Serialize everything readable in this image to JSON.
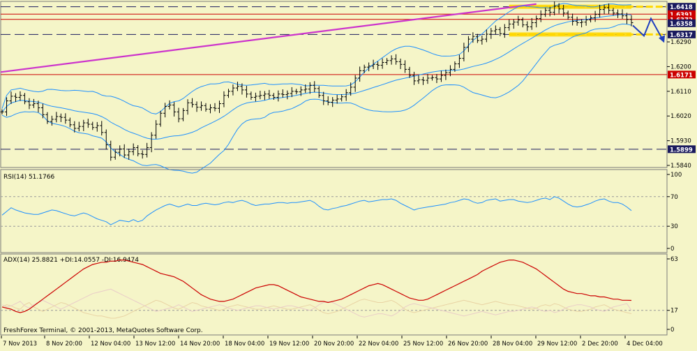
{
  "footer": {
    "copyright": "FreshForex Terminal, © 2001-2013, MetaQuotes Software Corp."
  },
  "colors": {
    "background": "#f5f5c8",
    "frame": "#7a7a7a",
    "candles": "#000000",
    "bollinger": "#1e90ff",
    "resistance_level": "#cc0000",
    "trendline": "#cc33cc",
    "target_band": "#ffd700",
    "arrow": "#1f3fbf",
    "rsi": "#1e90ff",
    "adx": "#cc0000"
  },
  "chart_data": [
    {
      "type": "candlestick",
      "title": "",
      "ylim": [
        1.5835,
        1.6435
      ],
      "y_ticks": [
        "1.6290",
        "1.6200",
        "1.6110",
        "1.6020",
        "1.5930",
        "1.5840"
      ],
      "y_tick_values": [
        1.629,
        1.62,
        1.611,
        1.602,
        1.593,
        1.584
      ],
      "price_labels": [
        {
          "text": "1.6418",
          "value": 1.6418,
          "style": "dark"
        },
        {
          "text": "1.6391",
          "value": 1.6391,
          "style": "red"
        },
        {
          "text": "1.6372",
          "value": 1.6372,
          "style": "red"
        },
        {
          "text": "1.6358",
          "value": 1.6358,
          "style": "dark"
        },
        {
          "text": "1.6317",
          "value": 1.6317,
          "style": "dark"
        },
        {
          "text": "1.6171",
          "value": 1.6171,
          "style": "red"
        },
        {
          "text": "1.5899",
          "value": 1.5899,
          "style": "dark"
        }
      ],
      "dashed_levels": [
        1.6418,
        1.6317,
        1.5899
      ],
      "solid_levels": [
        1.6391,
        1.6372,
        1.6171
      ],
      "trendline": {
        "from": 1.618,
        "to": 1.6428
      },
      "yellow_bands": [
        1.6418,
        1.6317
      ],
      "x_labels": [
        "7 Nov 2013",
        "8 Nov 20:00",
        "12 Nov 04:00",
        "13 Nov 12:00",
        "14 Nov 20:00",
        "18 Nov 04:00",
        "19 Nov 12:00",
        "20 Nov 20:00",
        "22 Nov 04:00",
        "25 Nov 12:00",
        "26 Nov 20:00",
        "28 Nov 04:00",
        "29 Nov 12:00",
        "2 Dec 20:00",
        "4 Dec 04:00"
      ],
      "close": [
        1.6035,
        1.6075,
        1.6092,
        1.6088,
        1.6095,
        1.6072,
        1.606,
        1.6065,
        1.605,
        1.6025,
        1.6,
        1.6008,
        1.6018,
        1.6015,
        1.6005,
        1.5988,
        1.5975,
        1.5982,
        1.5995,
        1.599,
        1.5978,
        1.5985,
        1.596,
        1.5915,
        1.587,
        1.5888,
        1.59,
        1.5878,
        1.589,
        1.5905,
        1.5882,
        1.588,
        1.5905,
        1.595,
        1.599,
        1.603,
        1.6055,
        1.606,
        1.6035,
        1.601,
        1.604,
        1.6068,
        1.6062,
        1.6052,
        1.6058,
        1.6045,
        1.605,
        1.6048,
        1.6065,
        1.6095,
        1.611,
        1.6122,
        1.6128,
        1.6115,
        1.61,
        1.6088,
        1.6092,
        1.6095,
        1.61,
        1.6095,
        1.6088,
        1.61,
        1.6098,
        1.6102,
        1.611,
        1.6108,
        1.6115,
        1.6118,
        1.6132,
        1.612,
        1.6095,
        1.6075,
        1.607,
        1.6078,
        1.6082,
        1.609,
        1.6105,
        1.6125,
        1.6158,
        1.6185,
        1.6198,
        1.6202,
        1.6208,
        1.6205,
        1.6215,
        1.6222,
        1.6228,
        1.6218,
        1.6208,
        1.619,
        1.6168,
        1.6148,
        1.6152,
        1.615,
        1.6158,
        1.616,
        1.6155,
        1.6168,
        1.6178,
        1.619,
        1.621,
        1.623,
        1.627,
        1.63,
        1.631,
        1.6295,
        1.63,
        1.6318,
        1.633,
        1.6335,
        1.632,
        1.6342,
        1.6355,
        1.6362,
        1.637,
        1.6352,
        1.6345,
        1.636,
        1.6375,
        1.639,
        1.6405,
        1.6398,
        1.642,
        1.641,
        1.6395,
        1.638,
        1.6365,
        1.636,
        1.6362,
        1.637,
        1.6378,
        1.639,
        1.6408,
        1.6415,
        1.6405,
        1.6395,
        1.6392,
        1.6385,
        1.6372,
        1.636
      ]
    },
    {
      "type": "line",
      "title": "RSI(14) 51.1766",
      "ylim": [
        0,
        100
      ],
      "y_ticks": [
        100,
        70,
        30,
        0
      ],
      "levels": [
        70,
        30
      ],
      "series": [
        {
          "values": [
            45,
            50,
            55,
            52,
            50,
            48,
            47,
            46,
            46,
            48,
            50,
            52,
            51,
            49,
            47,
            45,
            44,
            46,
            48,
            46,
            43,
            40,
            38,
            36,
            32,
            35,
            38,
            37,
            36,
            39,
            36,
            38,
            44,
            48,
            52,
            55,
            58,
            60,
            58,
            56,
            58,
            60,
            58,
            58,
            60,
            61,
            60,
            59,
            60,
            62,
            63,
            62,
            64,
            65,
            63,
            60,
            58,
            59,
            60,
            60,
            61,
            62,
            62,
            61,
            62,
            62,
            63,
            64,
            65,
            62,
            57,
            53,
            52,
            54,
            55,
            57,
            58,
            60,
            62,
            64,
            65,
            63,
            64,
            65,
            66,
            66,
            67,
            65,
            61,
            58,
            55,
            52,
            54,
            55,
            56,
            57,
            58,
            59,
            60,
            62,
            63,
            65,
            67,
            66,
            63,
            61,
            62,
            65,
            66,
            67,
            64,
            65,
            66,
            66,
            64,
            63,
            62,
            63,
            65,
            67,
            68,
            66,
            70,
            68,
            64,
            60,
            57,
            56,
            57,
            59,
            61,
            64,
            66,
            67,
            64,
            62,
            62,
            60,
            56,
            51.1766
          ]
        }
      ]
    },
    {
      "type": "line",
      "title": "ADX(14) 25.8821 +DI:14.0557 -DI:16.9474",
      "ylim": [
        0,
        63
      ],
      "y_ticks": [
        63,
        17,
        0
      ],
      "levels": [
        17
      ],
      "series": [
        {
          "values": [
            20,
            19,
            18,
            16,
            15,
            16,
            18,
            21,
            24,
            27,
            30,
            33,
            36,
            39,
            42,
            45,
            48,
            51,
            54,
            56,
            58,
            59,
            60,
            60,
            61,
            61,
            62,
            62,
            61,
            60,
            59,
            58,
            56,
            54,
            52,
            50,
            49,
            48,
            47,
            45,
            43,
            40,
            37,
            34,
            31,
            29,
            27,
            26,
            25,
            25,
            26,
            27,
            29,
            31,
            33,
            35,
            37,
            38,
            39,
            40,
            40,
            39,
            37,
            35,
            33,
            31,
            29,
            28,
            27,
            26,
            25,
            25,
            24,
            25,
            26,
            27,
            29,
            31,
            33,
            35,
            37,
            39,
            40,
            41,
            40,
            38,
            36,
            34,
            32,
            30,
            28,
            27,
            26,
            26,
            27,
            29,
            31,
            33,
            35,
            37,
            39,
            41,
            43,
            45,
            47,
            49,
            52,
            54,
            56,
            58,
            60,
            61,
            62,
            62,
            61,
            60,
            58,
            56,
            54,
            51,
            48,
            45,
            42,
            39,
            36,
            34,
            33,
            32,
            32,
            31,
            30,
            30,
            29,
            29,
            28,
            27,
            27,
            26,
            26,
            25.8821
          ]
        },
        {
          "values": [
            20,
            22,
            21,
            19,
            18,
            22,
            24,
            20,
            18,
            16,
            18,
            20,
            22,
            24,
            23,
            21,
            19,
            17,
            15,
            14,
            13,
            12,
            12,
            11,
            10,
            10,
            11,
            12,
            14,
            16,
            18,
            20,
            22,
            24,
            26,
            25,
            23,
            21,
            19,
            18,
            20,
            22,
            24,
            23,
            21,
            20,
            19,
            18,
            17,
            18,
            20,
            21,
            22,
            21,
            20,
            19,
            18,
            18,
            19,
            20,
            21,
            20,
            19,
            18,
            18,
            19,
            20,
            21,
            22,
            20,
            17,
            15,
            14,
            15,
            16,
            18,
            20,
            22,
            24,
            26,
            27,
            26,
            25,
            24,
            24,
            25,
            26,
            24,
            21,
            18,
            16,
            15,
            16,
            17,
            18,
            19,
            20,
            21,
            22,
            23,
            24,
            25,
            26,
            25,
            24,
            23,
            22,
            23,
            24,
            25,
            24,
            23,
            22,
            22,
            21,
            20,
            19,
            18,
            19,
            21,
            22,
            21,
            23,
            22,
            20,
            18,
            17,
            16,
            16,
            17,
            18,
            20,
            21,
            22,
            20,
            18,
            17,
            16,
            15,
            14.0557
          ]
        },
        {
          "values": [
            22,
            20,
            21,
            23,
            25,
            21,
            19,
            22,
            24,
            26,
            24,
            22,
            20,
            18,
            20,
            22,
            24,
            26,
            28,
            30,
            32,
            33,
            34,
            35,
            36,
            34,
            32,
            30,
            28,
            26,
            24,
            22,
            20,
            18,
            16,
            17,
            18,
            19,
            20,
            22,
            20,
            18,
            16,
            17,
            18,
            19,
            20,
            21,
            22,
            21,
            19,
            18,
            17,
            18,
            19,
            20,
            21,
            21,
            20,
            19,
            18,
            19,
            20,
            21,
            21,
            20,
            19,
            18,
            17,
            19,
            22,
            24,
            25,
            24,
            22,
            20,
            18,
            16,
            14,
            12,
            11,
            12,
            13,
            14,
            14,
            13,
            12,
            14,
            17,
            20,
            22,
            23,
            22,
            21,
            20,
            19,
            18,
            17,
            16,
            15,
            14,
            13,
            12,
            13,
            14,
            15,
            16,
            15,
            14,
            13,
            14,
            15,
            16,
            16,
            17,
            18,
            19,
            20,
            19,
            17,
            16,
            17,
            15,
            16,
            18,
            20,
            21,
            22,
            22,
            21,
            20,
            18,
            17,
            16,
            18,
            20,
            21,
            22,
            23,
            16.9474
          ]
        }
      ]
    }
  ]
}
